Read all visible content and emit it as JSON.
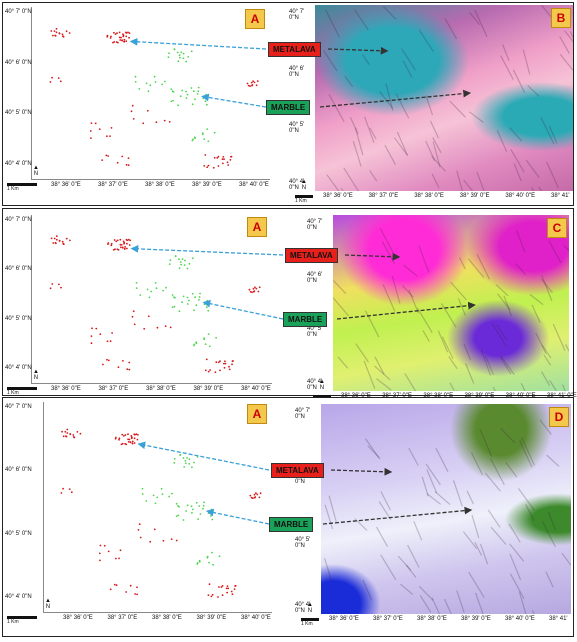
{
  "rows": [
    {
      "map_letter": "A",
      "image_letter": "B",
      "lat_labels": [
        "40° 7' 0\"N",
        "40° 6' 0\"N",
        "40° 5' 0\"N",
        "40° 4' 0\"N"
      ],
      "lon_labels": [
        "38° 36' 0\"E",
        "38° 37' 0\"E",
        "38° 38' 0\"E",
        "38° 39' 0\"E",
        "38° 40' 0\"E",
        "38° 41'"
      ],
      "scale_label": "1 Km",
      "north_label": "N"
    },
    {
      "map_letter": "A",
      "image_letter": "C",
      "lat_labels": [
        "40° 7' 0\"N",
        "40° 6' 0\"N",
        "40° 5' 0\"N",
        "40° 4' 0\"N"
      ],
      "lon_labels": [
        "38° 36' 0\"E",
        "38° 37' 0\"E",
        "38° 38' 0\"E",
        "38° 39' 0\"E",
        "38° 40' 0\"E",
        "38° 41' 0\"E"
      ],
      "scale_label": "1 Km",
      "north_label": "N"
    },
    {
      "map_letter": "A",
      "image_letter": "D",
      "lat_labels": [
        "40° 7' 0\"N",
        "40° 6' 0\"N",
        "40° 5' 0\"N",
        "40° 4' 0\"N"
      ],
      "lon_labels": [
        "38° 36' 0\"E",
        "38° 37' 0\"E",
        "38° 38' 0\"E",
        "38° 39' 0\"E",
        "38° 40' 0\"E",
        "38° 41'"
      ],
      "scale_label": "1 Km",
      "north_label": "N"
    }
  ],
  "labels": {
    "metalava": "METALAVA",
    "marble": "MARBLE"
  },
  "colors": {
    "metalava": "#e8201c",
    "marble": "#1aa25a",
    "metalava_points": "#d7191c",
    "marble_points": "#4dd64d",
    "arrow": "#3aa0d8"
  }
}
